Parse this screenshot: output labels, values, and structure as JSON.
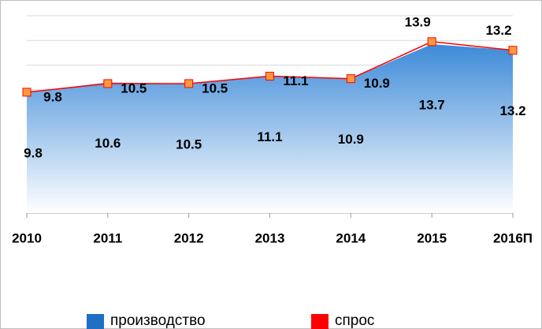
{
  "chart_data": {
    "type": "area-line",
    "categories": [
      "2010",
      "2011",
      "2012",
      "2013",
      "2014",
      "2015",
      "2016П"
    ],
    "series": [
      {
        "name": "производство",
        "color": "#1f6fc4",
        "values": [
          9.8,
          10.6,
          10.5,
          11.1,
          10.9,
          13.7,
          13.2
        ]
      },
      {
        "name": "спрос",
        "color": "#ff0000",
        "values": [
          9.8,
          10.5,
          10.5,
          11.1,
          10.9,
          13.9,
          13.2
        ]
      }
    ],
    "ylim": [
      0,
      16
    ],
    "yticks": [
      0,
      2,
      4,
      6,
      8,
      10,
      12,
      14,
      16
    ],
    "grid": true
  }
}
